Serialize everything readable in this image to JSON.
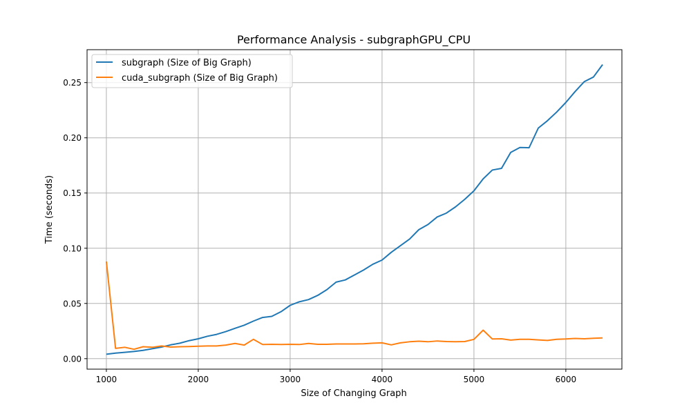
{
  "chart_data": {
    "type": "line",
    "title": "Performance Analysis - subgraphGPU_CPU",
    "xlabel": "Size of Changing Graph",
    "ylabel": "Time (seconds)",
    "xlim": [
      790,
      6610
    ],
    "ylim": [
      -0.0095,
      0.2798
    ],
    "xticks": [
      1000,
      2000,
      3000,
      4000,
      5000,
      6000
    ],
    "yticks": [
      0.0,
      0.05,
      0.1,
      0.15,
      0.2,
      0.25
    ],
    "ytick_labels": [
      "0.00",
      "0.05",
      "0.10",
      "0.15",
      "0.20",
      "0.25"
    ],
    "grid": true,
    "legend_position": "top-left",
    "x": [
      1000,
      1100,
      1200,
      1300,
      1400,
      1500,
      1600,
      1700,
      1800,
      1900,
      2000,
      2100,
      2200,
      2300,
      2400,
      2500,
      2600,
      2700,
      2800,
      2900,
      3000,
      3100,
      3200,
      3300,
      3400,
      3500,
      3600,
      3700,
      3800,
      3900,
      4000,
      4100,
      4200,
      4300,
      4400,
      4500,
      4600,
      4700,
      4800,
      4900,
      5000,
      5100,
      5200,
      5300,
      5400,
      5500,
      5600,
      5700,
      5800,
      5900,
      6000,
      6100,
      6200,
      6300,
      6400
    ],
    "series": [
      {
        "name": "subgraph (Size of Big Graph)",
        "color": "#1f77b4",
        "values": [
          0.004,
          0.005,
          0.0057,
          0.0065,
          0.0075,
          0.009,
          0.0105,
          0.0125,
          0.014,
          0.0163,
          0.018,
          0.0203,
          0.022,
          0.0245,
          0.0275,
          0.0303,
          0.034,
          0.0373,
          0.0383,
          0.0425,
          0.0483,
          0.0515,
          0.0535,
          0.0573,
          0.0625,
          0.0693,
          0.0713,
          0.0758,
          0.0803,
          0.0855,
          0.0893,
          0.0963,
          0.1023,
          0.1083,
          0.1168,
          0.1215,
          0.1283,
          0.1318,
          0.1375,
          0.1443,
          0.152,
          0.1628,
          0.1708,
          0.1723,
          0.1868,
          0.1912,
          0.191,
          0.2088,
          0.2155,
          0.2233,
          0.232,
          0.2418,
          0.2508,
          0.255,
          0.2663
        ]
      },
      {
        "name": "cuda_subgraph (Size of Big Graph)",
        "color": "#ff7f0e",
        "values": [
          0.088,
          0.0093,
          0.0103,
          0.0085,
          0.0108,
          0.0103,
          0.0115,
          0.0105,
          0.0108,
          0.011,
          0.0113,
          0.0115,
          0.0115,
          0.0123,
          0.0138,
          0.0123,
          0.0175,
          0.0128,
          0.013,
          0.0128,
          0.013,
          0.0128,
          0.0138,
          0.013,
          0.013,
          0.0133,
          0.0133,
          0.0133,
          0.0135,
          0.014,
          0.0143,
          0.0125,
          0.0143,
          0.0153,
          0.0158,
          0.0153,
          0.016,
          0.0155,
          0.0153,
          0.0155,
          0.0175,
          0.0258,
          0.0178,
          0.018,
          0.0168,
          0.0175,
          0.0175,
          0.017,
          0.0165,
          0.0175,
          0.0178,
          0.0183,
          0.018,
          0.0185,
          0.0188
        ]
      }
    ]
  }
}
